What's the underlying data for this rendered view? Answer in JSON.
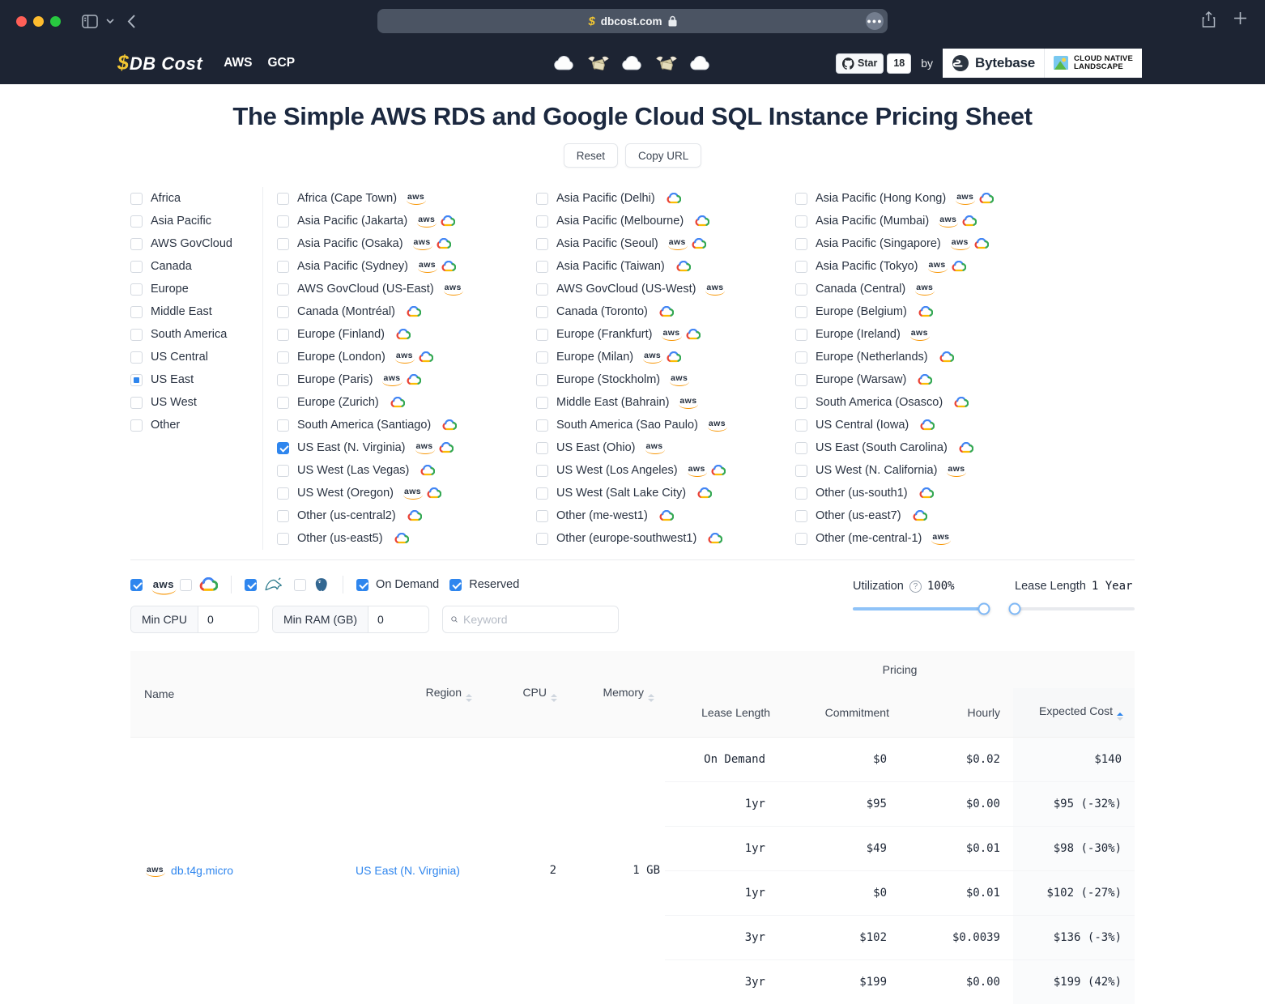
{
  "colors": {
    "accent": "#2f86ee",
    "navbar": "#1d2433"
  },
  "browser": {
    "url": "dbcost.com"
  },
  "navbar": {
    "logo_dollar": "$",
    "logo_text": "DB Cost",
    "links": [
      "AWS",
      "GCP"
    ],
    "decor_icons": [
      "cloud-icon",
      "money-wings-icon",
      "cloud-icon",
      "money-wings-icon",
      "cloud-icon"
    ],
    "star_label": "Star",
    "star_count": "18",
    "by_text": "by",
    "bytebase_label": "Bytebase",
    "cnl_line1": "CLOUD NATIVE",
    "cnl_line2": "LANDSCAPE"
  },
  "page": {
    "title": "The Simple AWS RDS and Google Cloud SQL Instance Pricing Sheet",
    "reset_label": "Reset",
    "copy_url_label": "Copy URL"
  },
  "region_groups": [
    {
      "label": "Africa",
      "state": ""
    },
    {
      "label": "Asia Pacific",
      "state": ""
    },
    {
      "label": "AWS GovCloud",
      "state": ""
    },
    {
      "label": "Canada",
      "state": ""
    },
    {
      "label": "Europe",
      "state": ""
    },
    {
      "label": "Middle East",
      "state": ""
    },
    {
      "label": "South America",
      "state": ""
    },
    {
      "label": "US Central",
      "state": ""
    },
    {
      "label": "US East",
      "state": "indeterminate"
    },
    {
      "label": "US West",
      "state": ""
    },
    {
      "label": "Other",
      "state": ""
    }
  ],
  "region_columns": [
    [
      {
        "label": "Africa (Cape Town)",
        "aws": true,
        "gcp": false,
        "checked": false
      },
      {
        "label": "Asia Pacific (Jakarta)",
        "aws": true,
        "gcp": true,
        "checked": false
      },
      {
        "label": "Asia Pacific (Osaka)",
        "aws": true,
        "gcp": true,
        "checked": false
      },
      {
        "label": "Asia Pacific (Sydney)",
        "aws": true,
        "gcp": true,
        "checked": false
      },
      {
        "label": "AWS GovCloud (US-East)",
        "aws": true,
        "gcp": false,
        "checked": false
      },
      {
        "label": "Canada (Montréal)",
        "aws": false,
        "gcp": true,
        "checked": false
      },
      {
        "label": "Europe (Finland)",
        "aws": false,
        "gcp": true,
        "checked": false
      },
      {
        "label": "Europe (London)",
        "aws": true,
        "gcp": true,
        "checked": false
      },
      {
        "label": "Europe (Paris)",
        "aws": true,
        "gcp": true,
        "checked": false
      },
      {
        "label": "Europe (Zurich)",
        "aws": false,
        "gcp": true,
        "checked": false
      },
      {
        "label": "South America (Santiago)",
        "aws": false,
        "gcp": true,
        "checked": false
      },
      {
        "label": "US East (N. Virginia)",
        "aws": true,
        "gcp": true,
        "checked": true
      },
      {
        "label": "US West (Las Vegas)",
        "aws": false,
        "gcp": true,
        "checked": false
      },
      {
        "label": "US West (Oregon)",
        "aws": true,
        "gcp": true,
        "checked": false
      },
      {
        "label": "Other (us-central2)",
        "aws": false,
        "gcp": true,
        "checked": false
      },
      {
        "label": "Other (us-east5)",
        "aws": false,
        "gcp": true,
        "checked": false
      }
    ],
    [
      {
        "label": "Asia Pacific (Delhi)",
        "aws": false,
        "gcp": true,
        "checked": false
      },
      {
        "label": "Asia Pacific (Melbourne)",
        "aws": false,
        "gcp": true,
        "checked": false
      },
      {
        "label": "Asia Pacific (Seoul)",
        "aws": true,
        "gcp": true,
        "checked": false
      },
      {
        "label": "Asia Pacific (Taiwan)",
        "aws": false,
        "gcp": true,
        "checked": false
      },
      {
        "label": "AWS GovCloud (US-West)",
        "aws": true,
        "gcp": false,
        "checked": false
      },
      {
        "label": "Canada (Toronto)",
        "aws": false,
        "gcp": true,
        "checked": false
      },
      {
        "label": "Europe (Frankfurt)",
        "aws": true,
        "gcp": true,
        "checked": false
      },
      {
        "label": "Europe (Milan)",
        "aws": true,
        "gcp": true,
        "checked": false
      },
      {
        "label": "Europe (Stockholm)",
        "aws": true,
        "gcp": false,
        "checked": false
      },
      {
        "label": "Middle East (Bahrain)",
        "aws": true,
        "gcp": false,
        "checked": false
      },
      {
        "label": "South America (Sao Paulo)",
        "aws": true,
        "gcp": false,
        "checked": false
      },
      {
        "label": "US East (Ohio)",
        "aws": true,
        "gcp": false,
        "checked": false
      },
      {
        "label": "US West (Los Angeles)",
        "aws": true,
        "gcp": true,
        "checked": false
      },
      {
        "label": "US West (Salt Lake City)",
        "aws": false,
        "gcp": true,
        "checked": false
      },
      {
        "label": "Other (me-west1)",
        "aws": false,
        "gcp": true,
        "checked": false
      },
      {
        "label": "Other (europe-southwest1)",
        "aws": false,
        "gcp": true,
        "checked": false
      }
    ],
    [
      {
        "label": "Asia Pacific (Hong Kong)",
        "aws": true,
        "gcp": true,
        "checked": false
      },
      {
        "label": "Asia Pacific (Mumbai)",
        "aws": true,
        "gcp": true,
        "checked": false
      },
      {
        "label": "Asia Pacific (Singapore)",
        "aws": true,
        "gcp": true,
        "checked": false
      },
      {
        "label": "Asia Pacific (Tokyo)",
        "aws": true,
        "gcp": true,
        "checked": false
      },
      {
        "label": "Canada (Central)",
        "aws": true,
        "gcp": false,
        "checked": false
      },
      {
        "label": "Europe (Belgium)",
        "aws": false,
        "gcp": true,
        "checked": false
      },
      {
        "label": "Europe (Ireland)",
        "aws": true,
        "gcp": false,
        "checked": false
      },
      {
        "label": "Europe (Netherlands)",
        "aws": false,
        "gcp": true,
        "checked": false
      },
      {
        "label": "Europe (Warsaw)",
        "aws": false,
        "gcp": true,
        "checked": false
      },
      {
        "label": "South America (Osasco)",
        "aws": false,
        "gcp": true,
        "checked": false
      },
      {
        "label": "US Central (Iowa)",
        "aws": false,
        "gcp": true,
        "checked": false
      },
      {
        "label": "US East (South Carolina)",
        "aws": false,
        "gcp": true,
        "checked": false
      },
      {
        "label": "US West (N. California)",
        "aws": true,
        "gcp": false,
        "checked": false
      },
      {
        "label": "Other (us-south1)",
        "aws": false,
        "gcp": true,
        "checked": false
      },
      {
        "label": "Other (us-east7)",
        "aws": false,
        "gcp": true,
        "checked": false
      },
      {
        "label": "Other (me-central-1)",
        "aws": true,
        "gcp": false,
        "checked": false
      }
    ]
  ],
  "filters": {
    "providers": [
      {
        "name": "aws",
        "checked": true
      },
      {
        "name": "gcp",
        "checked": false
      }
    ],
    "engines": [
      {
        "name": "mysql",
        "checked": true
      },
      {
        "name": "postgresql",
        "checked": false
      }
    ],
    "charge_types": [
      {
        "label": "On Demand",
        "checked": true
      },
      {
        "label": "Reserved",
        "checked": true
      }
    ],
    "min_cpu_label": "Min CPU",
    "min_cpu_value": "0",
    "min_ram_label": "Min RAM (GB)",
    "min_ram_value": "0",
    "keyword_placeholder": "Keyword",
    "utilization_label": "Utilization",
    "utilization_value": "100%",
    "lease_label": "Lease Length",
    "lease_value": "1 Year"
  },
  "table": {
    "pricing_group_label": "Pricing",
    "columns": {
      "name": "Name",
      "region": "Region",
      "cpu": "CPU",
      "memory": "Memory",
      "lease": "Lease Length",
      "commitment": "Commitment",
      "hourly": "Hourly",
      "expected": "Expected Cost"
    },
    "instance": {
      "provider": "aws",
      "name": "db.t4g.micro",
      "region": "US East (N. Virginia)",
      "cpu": "2",
      "memory": "1 GB"
    },
    "pricing_rows": [
      {
        "lease": "On Demand",
        "commitment": "$0",
        "hourly": "$0.02",
        "expected": "$140"
      },
      {
        "lease": "1yr",
        "commitment": "$95",
        "hourly": "$0.00",
        "expected": "$95 (-32%)"
      },
      {
        "lease": "1yr",
        "commitment": "$49",
        "hourly": "$0.01",
        "expected": "$98 (-30%)"
      },
      {
        "lease": "1yr",
        "commitment": "$0",
        "hourly": "$0.01",
        "expected": "$102 (-27%)"
      },
      {
        "lease": "3yr",
        "commitment": "$102",
        "hourly": "$0.0039",
        "expected": "$136 (-3%)"
      },
      {
        "lease": "3yr",
        "commitment": "$199",
        "hourly": "$0.00",
        "expected": "$199 (42%)"
      }
    ]
  }
}
